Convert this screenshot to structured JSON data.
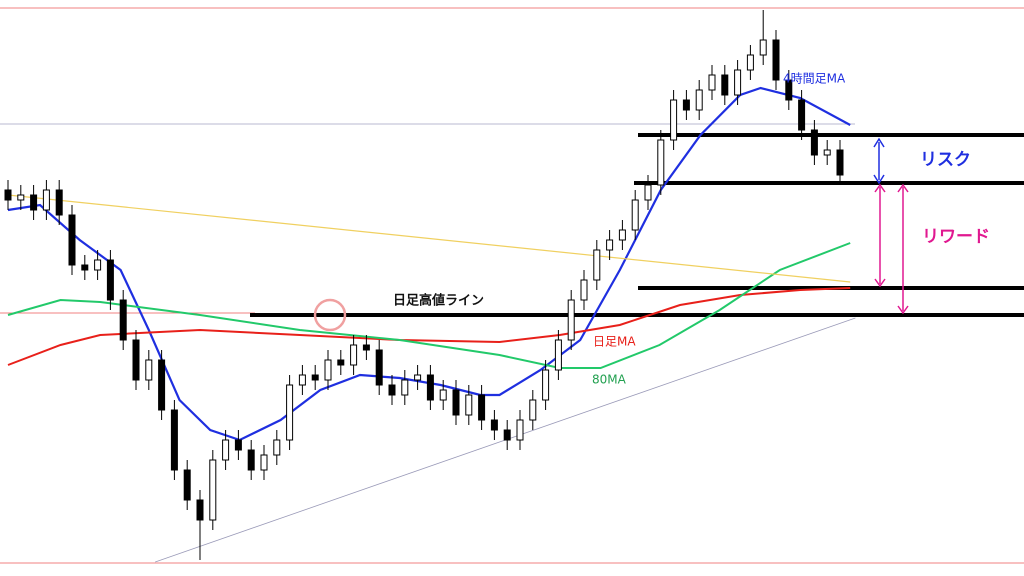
{
  "chart_data": {
    "type": "candlestick",
    "xlim": [
      -0.625,
      79.375
    ],
    "ylim": [
      0,
      576
    ],
    "open": [
      386,
      376,
      381,
      366,
      386,
      361,
      311,
      306,
      316,
      276,
      236,
      196,
      216,
      166,
      106,
      76,
      56,
      116,
      136,
      126,
      106,
      121,
      136,
      191,
      201,
      196,
      216,
      211,
      231,
      226,
      191,
      181,
      196,
      201,
      176,
      186,
      161,
      181,
      156,
      146,
      136,
      156,
      176,
      206,
      236,
      276,
      296,
      326,
      336,
      346,
      376,
      391,
      436,
      476,
      466,
      486,
      501,
      481,
      506,
      521,
      536,
      496,
      476,
      446,
      421,
      426
    ],
    "high": [
      396,
      391,
      391,
      396,
      396,
      371,
      321,
      326,
      326,
      286,
      246,
      226,
      226,
      176,
      116,
      86,
      126,
      146,
      146,
      136,
      131,
      146,
      201,
      211,
      211,
      226,
      226,
      241,
      241,
      236,
      201,
      206,
      211,
      211,
      196,
      196,
      191,
      191,
      166,
      156,
      166,
      186,
      216,
      246,
      286,
      306,
      336,
      346,
      356,
      386,
      401,
      446,
      486,
      486,
      496,
      511,
      511,
      516,
      531,
      566,
      546,
      506,
      486,
      456,
      436,
      436
    ],
    "low": [
      366,
      366,
      356,
      356,
      351,
      301,
      296,
      296,
      266,
      226,
      186,
      186,
      156,
      96,
      66,
      16,
      46,
      106,
      116,
      96,
      96,
      111,
      126,
      181,
      186,
      186,
      201,
      201,
      216,
      181,
      171,
      171,
      186,
      166,
      166,
      151,
      151,
      146,
      136,
      126,
      126,
      146,
      166,
      196,
      226,
      266,
      286,
      316,
      326,
      336,
      366,
      381,
      426,
      456,
      456,
      476,
      471,
      471,
      496,
      511,
      486,
      466,
      436,
      411,
      411,
      391
    ],
    "close": [
      376,
      381,
      366,
      386,
      361,
      311,
      306,
      316,
      276,
      236,
      196,
      216,
      166,
      106,
      76,
      56,
      116,
      136,
      126,
      106,
      121,
      136,
      191,
      201,
      196,
      216,
      211,
      231,
      226,
      191,
      181,
      196,
      201,
      176,
      186,
      161,
      181,
      156,
      146,
      136,
      156,
      176,
      206,
      236,
      276,
      296,
      326,
      336,
      346,
      376,
      391,
      436,
      476,
      466,
      486,
      501,
      481,
      506,
      521,
      536,
      496,
      476,
      446,
      421,
      426,
      401
    ],
    "up_color": "#ffffff",
    "down_color": "#000000",
    "series": [
      {
        "name": "4時間足MA",
        "color": "#1f2fe0",
        "x": [
          0,
          2.5,
          5.6,
          8.8,
          11,
          13.4,
          15.8,
          18.1,
          21.3,
          24.4,
          27.5,
          30.6,
          33.8,
          36.9,
          38.4,
          41.6,
          44.7,
          47.8,
          51,
          54.1,
          57.2,
          58.8,
          61.9,
          65.8
        ],
        "values": [
          366,
          371,
          336,
          306,
          246,
          176,
          146,
          136,
          156,
          186,
          201,
          198,
          191,
          181,
          181,
          206,
          236,
          306,
          386,
          441,
          481,
          488,
          478,
          451
        ]
      },
      {
        "name": "日足MA",
        "color": "#e8201a",
        "x": [
          0,
          4.1,
          7.2,
          15,
          22.8,
          30.6,
          38.4,
          43.1,
          47.8,
          52.5,
          57.2,
          61.9,
          65.8
        ],
        "values": [
          211,
          231,
          241,
          246,
          241,
          236,
          234,
          241,
          251,
          271,
          281,
          286,
          288
        ]
      },
      {
        "name": "80MA",
        "color": "#22c96a",
        "x": [
          0,
          4.1,
          7.2,
          15,
          22.8,
          30.6,
          38.4,
          43.1,
          46.3,
          50.9,
          55.6,
          60.3,
          65.8
        ],
        "values": [
          261,
          276,
          274,
          261,
          246,
          236,
          221,
          208,
          208,
          231,
          266,
          306,
          333
        ]
      },
      {
        "color": "#f0d060",
        "x": [
          0,
          65.8
        ],
        "values": [
          381,
          294
        ]
      },
      {
        "color": "#9a9ab8",
        "x": [
          11.5,
          66.2
        ],
        "values": [
          14,
          258
        ]
      }
    ],
    "levels": [
      {
        "value": 568,
        "color": "#f08080"
      },
      {
        "value": 13,
        "color": "#f08080"
      },
      {
        "value": 263,
        "color": "#f08080"
      },
      {
        "value": 452,
        "color": "#a0a0c0"
      },
      {
        "value": 441,
        "color": "#000000"
      },
      {
        "value": 393,
        "color": "#000000"
      },
      {
        "value": 288,
        "color": "#000000"
      },
      {
        "value": 261,
        "color": "#000000"
      }
    ],
    "annotations": {
      "daily_high": "日足高値ライン",
      "risk": "リスク",
      "reward": "リワード"
    }
  }
}
